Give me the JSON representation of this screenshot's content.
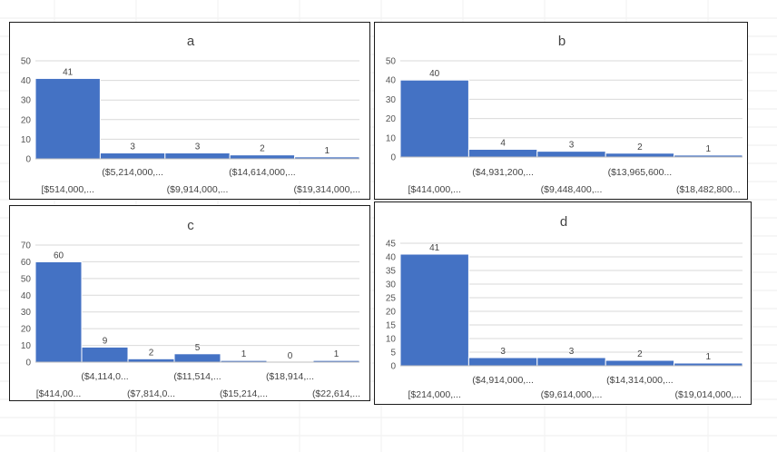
{
  "chart_data": [
    {
      "type": "bar",
      "title": "a",
      "categories": [
        "[$514,000,...",
        "($5,214,000,...",
        "($9,914,000,...",
        "($14,614,000,...",
        "($19,314,000,..."
      ],
      "values": [
        41,
        3,
        3,
        2,
        1
      ],
      "yticks": [
        0,
        10,
        20,
        30,
        40,
        50
      ],
      "ylim": [
        0,
        50
      ],
      "xlabel": "",
      "ylabel": "",
      "color": "#4472C4"
    },
    {
      "type": "bar",
      "title": "b",
      "categories": [
        "[$414,000,...",
        "($4,931,200,...",
        "($9,448,400,...",
        "($13,965,600...",
        "($18,482,800..."
      ],
      "values": [
        40,
        4,
        3,
        2,
        1
      ],
      "yticks": [
        0,
        10,
        20,
        30,
        40,
        50
      ],
      "ylim": [
        0,
        50
      ],
      "xlabel": "",
      "ylabel": "",
      "color": "#4472C4"
    },
    {
      "type": "bar",
      "title": "c",
      "categories": [
        "[$414,00...",
        "($4,114,0...",
        "($7,814,0...",
        "($11,514,...",
        "($15,214,...",
        "($18,914,...",
        "($22,614,..."
      ],
      "values": [
        60,
        9,
        2,
        5,
        1,
        0,
        1
      ],
      "yticks": [
        0,
        10,
        20,
        30,
        40,
        50,
        60,
        70
      ],
      "ylim": [
        0,
        70
      ],
      "xlabel": "",
      "ylabel": "",
      "color": "#4472C4"
    },
    {
      "type": "bar",
      "title": "d",
      "categories": [
        "[$214,000,...",
        "($4,914,000,...",
        "($9,614,000,...",
        "($14,314,000,...",
        "($19,014,000,..."
      ],
      "values": [
        41,
        3,
        3,
        2,
        1
      ],
      "yticks": [
        0,
        5,
        10,
        15,
        20,
        25,
        30,
        35,
        40,
        45
      ],
      "ylim": [
        0,
        45
      ],
      "xlabel": "",
      "ylabel": "",
      "color": "#4472C4"
    }
  ]
}
